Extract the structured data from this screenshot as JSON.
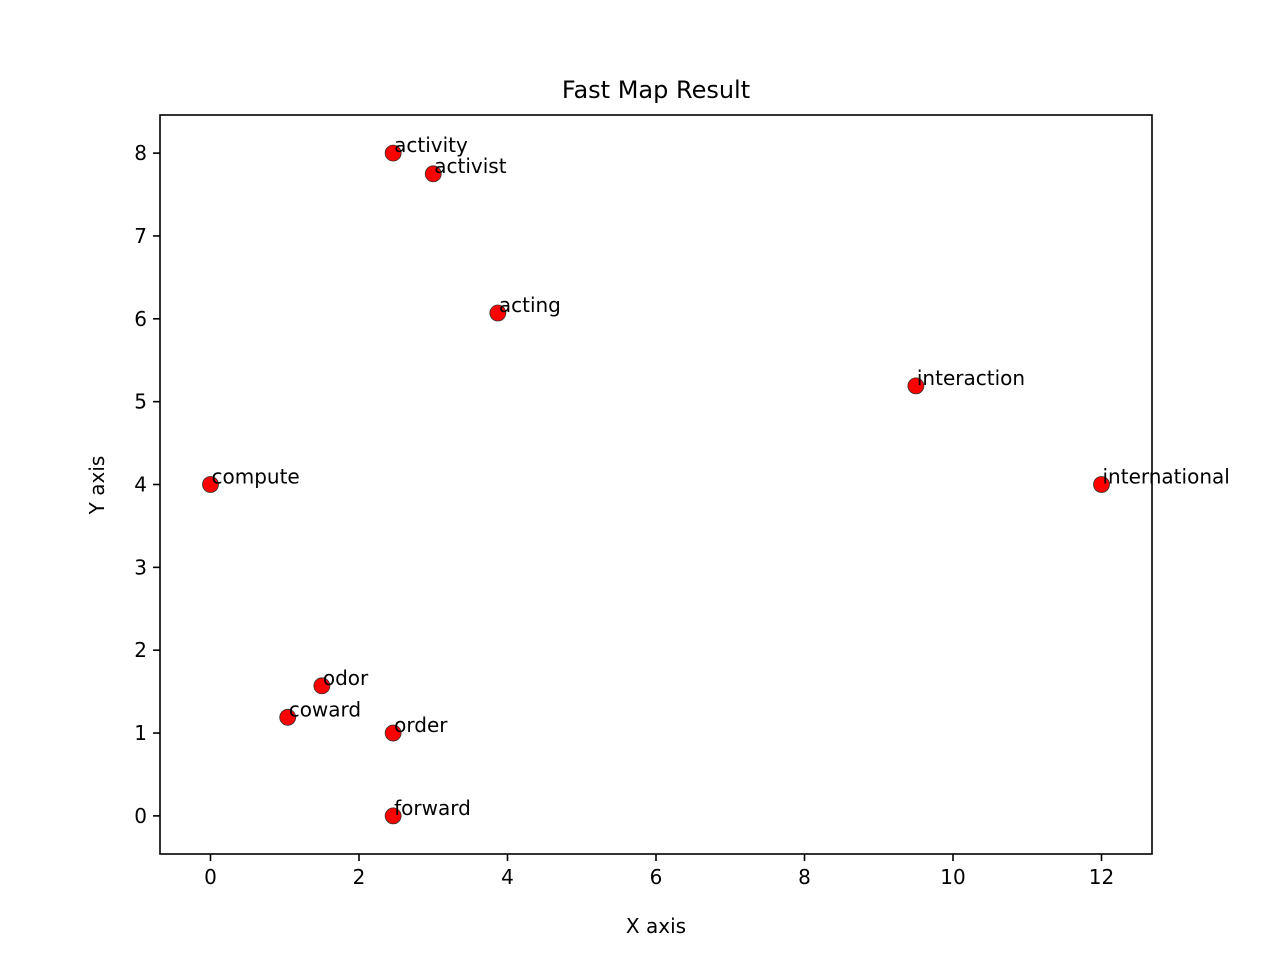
{
  "chart_data": {
    "type": "scatter",
    "title": "Fast Map Result",
    "xlabel": "X axis",
    "ylabel": "Y axis",
    "xlim": [
      -0.68,
      12.68
    ],
    "ylim": [
      -0.46,
      8.46
    ],
    "x_ticks": [
      0,
      2,
      4,
      6,
      8,
      10,
      12
    ],
    "y_ticks": [
      0,
      1,
      2,
      3,
      4,
      5,
      6,
      7,
      8
    ],
    "grid": false,
    "marker_color": "#ff0000",
    "marker_edge_color": "#333333",
    "points": [
      {
        "label": "activity",
        "x": 2.46,
        "y": 8.0
      },
      {
        "label": "activist",
        "x": 3.0,
        "y": 7.75
      },
      {
        "label": "acting",
        "x": 3.87,
        "y": 6.07
      },
      {
        "label": "interaction",
        "x": 9.5,
        "y": 5.19
      },
      {
        "label": "compute",
        "x": 0.0,
        "y": 4.0
      },
      {
        "label": "international",
        "x": 12.0,
        "y": 4.0
      },
      {
        "label": "odor",
        "x": 1.5,
        "y": 1.57
      },
      {
        "label": "coward",
        "x": 1.04,
        "y": 1.19
      },
      {
        "label": "order",
        "x": 2.46,
        "y": 1.0
      },
      {
        "label": "forward",
        "x": 2.46,
        "y": 0.0
      }
    ]
  }
}
